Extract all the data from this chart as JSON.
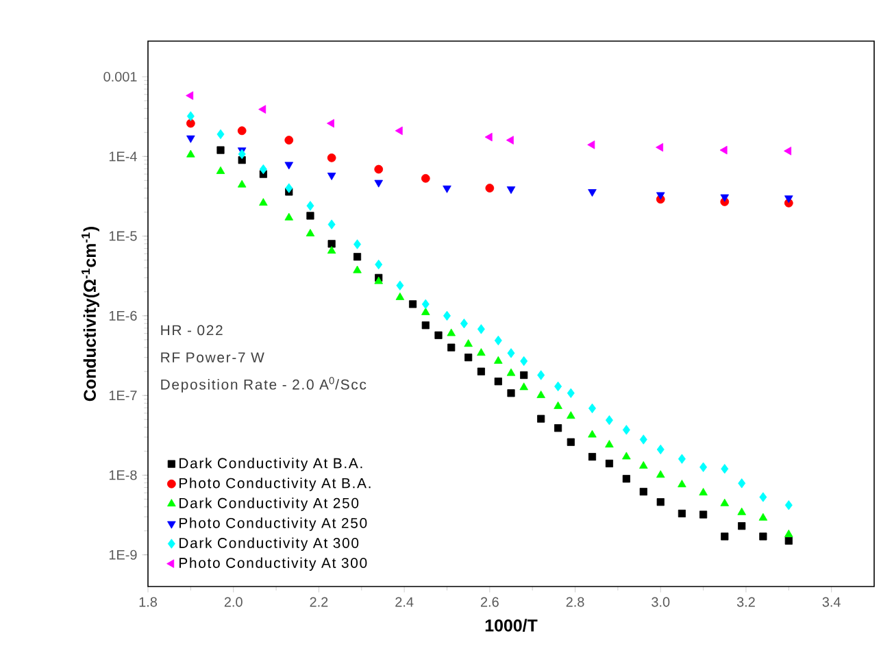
{
  "chart_data": {
    "type": "scatter",
    "xlabel": "1000/T",
    "ylabel": "Conductivity(Ω$^{-1}$cm$^{-1}$)",
    "log": "y",
    "legend": "bottom left",
    "xlim": [
      1.8,
      3.5
    ],
    "ylim": [
      4e-10,
      0.0028
    ],
    "xticks": [
      1.8,
      {
        "value": 2.0,
        "label": "2.0"
      },
      2.2,
      2.4,
      2.6,
      2.8,
      {
        "value": 3.0,
        "label": "3.0"
      },
      3.2,
      3.4
    ],
    "yticks": [
      {
        "value": 1e-09,
        "label": "1E-9"
      },
      {
        "value": 1e-08,
        "label": "1E-8"
      },
      {
        "value": 1e-07,
        "label": "1E-7"
      },
      {
        "value": 1e-06,
        "label": "1E-6"
      },
      {
        "value": 1e-05,
        "label": "1E-5"
      },
      {
        "value": 0.0001,
        "label": "1E-4"
      },
      0.001
    ],
    "annotations": [
      "HR - 022",
      "RF Power-7 W",
      "Deposition Rate - 2.0 A$^{0}$/Scc"
    ],
    "series": [
      {
        "name": "Dark Conductivity At B.A.",
        "color": "#000000",
        "marker": "square",
        "x": [
          1.97,
          2.02,
          2.07,
          2.13,
          2.18,
          2.23,
          2.29,
          2.34,
          2.42,
          2.45,
          2.48,
          2.51,
          2.55,
          2.58,
          2.62,
          2.65,
          2.68,
          2.72,
          2.76,
          2.79,
          2.84,
          2.88,
          2.92,
          2.96,
          3.0,
          3.05,
          3.1,
          3.15,
          3.19,
          3.24,
          3.3
        ],
        "values": [
          0.00012,
          9e-05,
          6e-05,
          3.6e-05,
          1.8e-05,
          8e-06,
          5.5e-06,
          3e-06,
          1.4e-06,
          7.6e-07,
          5.7e-07,
          4e-07,
          3e-07,
          2e-07,
          1.5e-07,
          1.07e-07,
          1.8e-07,
          5.1e-08,
          3.9e-08,
          2.6e-08,
          1.7e-08,
          1.4e-08,
          9e-09,
          6.2e-09,
          4.6e-09,
          3.3e-09,
          3.2e-09,
          1.7e-09,
          2.3e-09,
          1.7e-09,
          1.5e-09
        ]
      },
      {
        "name": "Photo Conductivity At B.A.",
        "color": "#ff0000",
        "marker": "circle",
        "x": [
          1.9,
          2.02,
          2.13,
          2.23,
          2.34,
          2.45,
          2.6,
          3.0,
          3.15,
          3.3
        ],
        "values": [
          0.00026,
          0.00021,
          0.00016,
          9.6e-05,
          6.9e-05,
          5.3e-05,
          4e-05,
          2.9e-05,
          2.7e-05,
          2.6e-05
        ]
      },
      {
        "name": "Dark Conductivity At 250",
        "color": "#00ff00",
        "marker": "triangle",
        "x": [
          1.9,
          1.97,
          2.02,
          2.07,
          2.13,
          2.18,
          2.23,
          2.29,
          2.34,
          2.39,
          2.45,
          2.51,
          2.55,
          2.58,
          2.62,
          2.65,
          2.68,
          2.72,
          2.76,
          2.79,
          2.84,
          2.88,
          2.92,
          2.96,
          3.0,
          3.05,
          3.1,
          3.15,
          3.19,
          3.24,
          3.3
        ],
        "values": [
          0.000105,
          6.5e-05,
          4.4e-05,
          2.6e-05,
          1.7e-05,
          1.07e-05,
          6.5e-06,
          3.7e-06,
          2.7e-06,
          1.7e-06,
          1.1e-06,
          6e-07,
          4.4e-07,
          3.4e-07,
          2.7e-07,
          1.9e-07,
          1.26e-07,
          1e-07,
          7.3e-08,
          5.5e-08,
          3.2e-08,
          2.4e-08,
          1.7e-08,
          1.3e-08,
          1e-08,
          7.6e-09,
          6e-09,
          4.4e-09,
          3.4e-09,
          2.9e-09,
          1.8e-09
        ]
      },
      {
        "name": "Photo Conductivity At 250",
        "color": "#0000ff",
        "marker": "triangle-down",
        "x": [
          1.9,
          2.02,
          2.13,
          2.23,
          2.34,
          2.5,
          2.65,
          2.84,
          3.0,
          3.15,
          3.3
        ],
        "values": [
          0.00017,
          0.00012,
          7.9e-05,
          5.8e-05,
          4.7e-05,
          4e-05,
          3.9e-05,
          3.6e-05,
          3.3e-05,
          3.1e-05,
          3e-05
        ]
      },
      {
        "name": "Dark Conductivity At 300",
        "color": "#00ffff",
        "marker": "diamond",
        "x": [
          1.9,
          1.97,
          2.02,
          2.07,
          2.13,
          2.18,
          2.23,
          2.29,
          2.34,
          2.39,
          2.45,
          2.5,
          2.54,
          2.58,
          2.62,
          2.65,
          2.68,
          2.72,
          2.76,
          2.79,
          2.84,
          2.88,
          2.92,
          2.96,
          3.0,
          3.05,
          3.1,
          3.15,
          3.19,
          3.24,
          3.3
        ],
        "values": [
          0.00032,
          0.00019,
          0.000107,
          6.9e-05,
          4e-05,
          2.4e-05,
          1.4e-05,
          7.9e-06,
          4.4e-06,
          2.4e-06,
          1.4e-06,
          1e-06,
          8e-07,
          6.8e-07,
          4.9e-07,
          3.4e-07,
          2.7e-07,
          1.8e-07,
          1.3e-07,
          1.07e-07,
          6.9e-08,
          4.9e-08,
          3.7e-08,
          2.8e-08,
          2.1e-08,
          1.6e-08,
          1.26e-08,
          1.2e-08,
          7.9e-09,
          5.3e-09,
          4.2e-09
        ]
      },
      {
        "name": "Photo Conductivity At 300",
        "color": "#ff00ff",
        "marker": "triangle-left",
        "x": [
          1.9,
          2.07,
          2.23,
          2.39,
          2.6,
          2.65,
          2.84,
          3.0,
          3.15,
          3.3
        ],
        "values": [
          0.00058,
          0.00039,
          0.00026,
          0.00021,
          0.000175,
          0.00016,
          0.00014,
          0.00013,
          0.00012,
          0.000117
        ]
      }
    ]
  }
}
